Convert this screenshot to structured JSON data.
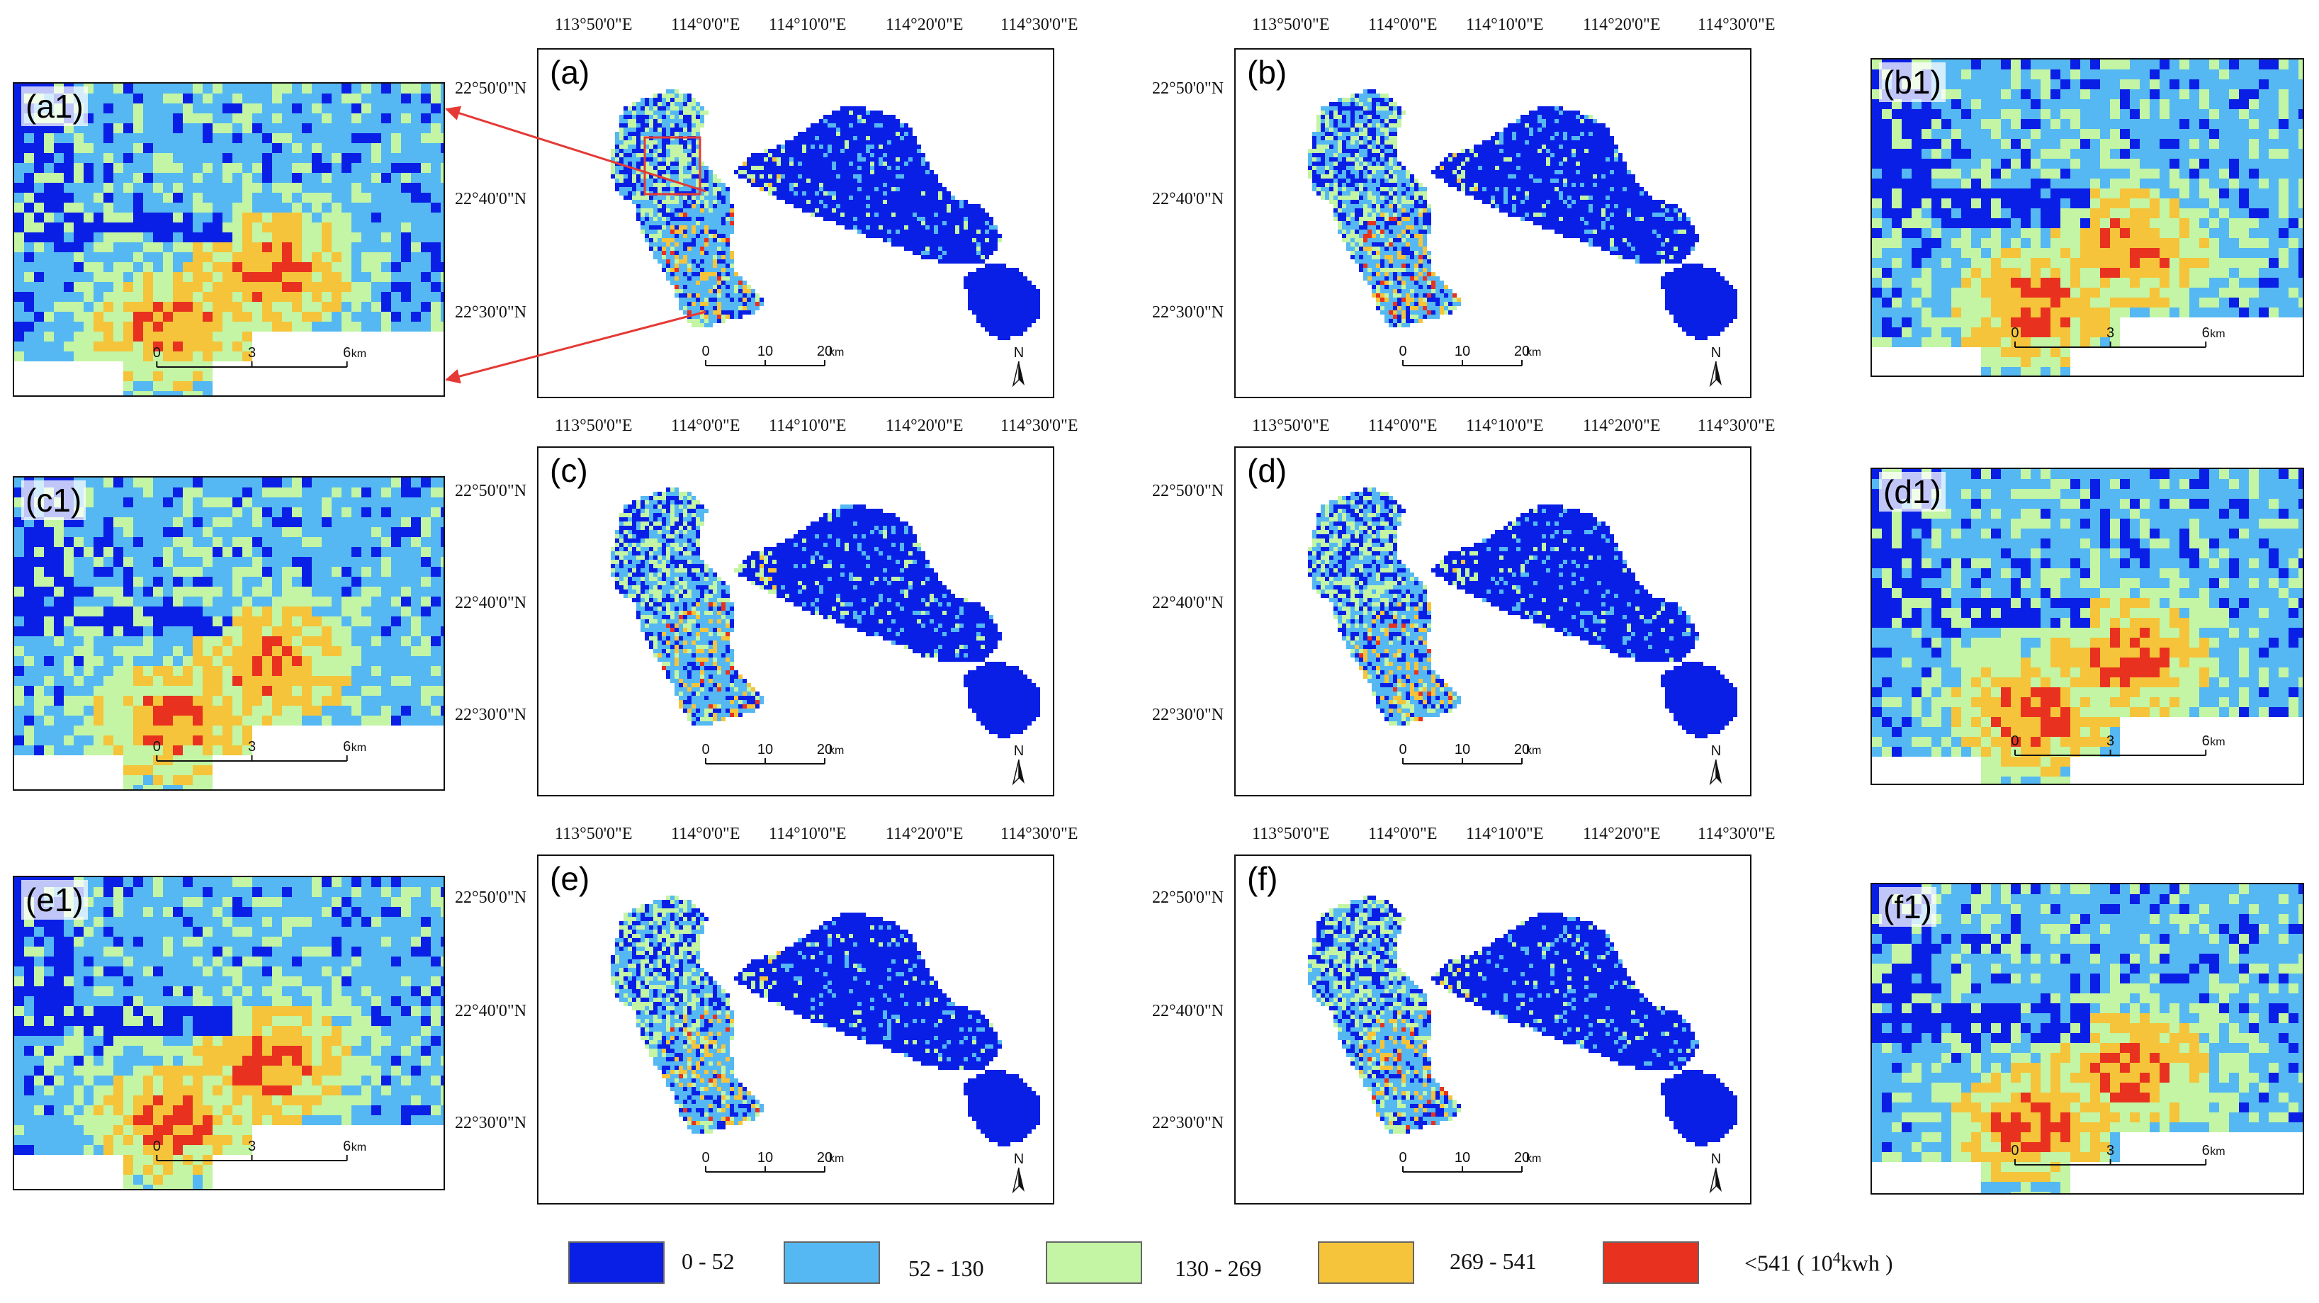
{
  "figure": {
    "panels": [
      "(a)",
      "(b)",
      "(c)",
      "(d)",
      "(e)",
      "(f)"
    ],
    "zoom_panels": [
      "(a1)",
      "(b1)",
      "(c1)",
      "(d1)",
      "(e1)",
      "(f1)"
    ],
    "lon_labels": [
      "113°50'0\"E",
      "114°0'0\"E",
      "114°10'0\"E",
      "114°20'0\"E",
      "114°30'0\"E"
    ],
    "lat_labels": [
      "22°50'0\"N",
      "22°40'0\"N",
      "22°30'0\"N"
    ],
    "map_scale": {
      "ticks": [
        "0",
        "10",
        "20"
      ],
      "unit": "km"
    },
    "zoom_scale": {
      "ticks": [
        "0",
        "3",
        "6"
      ],
      "unit": "km"
    },
    "north": "N"
  },
  "legend": {
    "classes": [
      {
        "label": "0 - 52",
        "color": "#0a1fe6"
      },
      {
        "label": "52 - 130",
        "color": "#55b8f2"
      },
      {
        "label": "130 - 269",
        "color": "#c3f5a4"
      },
      {
        "label": "269 - 541",
        "color": "#f5c43a"
      },
      {
        "label": "<541",
        "color": "#e8321f"
      }
    ],
    "unit": "10",
    "unit_exp": "4",
    "unit_suffix": "kwh"
  },
  "colors": {
    "frame": "#111111",
    "callout": "#e53935"
  }
}
